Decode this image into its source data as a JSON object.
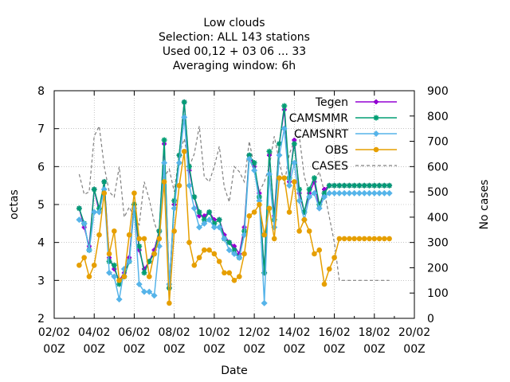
{
  "chart_data": {
    "type": "line",
    "title_lines": [
      "Low clouds",
      "Selection: ALL    143 stations",
      "Used  00,12  + 03 06 ... 33",
      "Averaging window:  6h"
    ],
    "xlabel": "Date",
    "ylabel": "octas",
    "y2label": "No cases",
    "xlim": [
      0,
      18
    ],
    "ylim": [
      2,
      8
    ],
    "y2lim": [
      0,
      900
    ],
    "x_ticks": [
      {
        "x": 0,
        "line1": "02/02",
        "line2": "00Z"
      },
      {
        "x": 2,
        "line1": "04/02",
        "line2": "00Z"
      },
      {
        "x": 4,
        "line1": "06/02",
        "line2": "00Z"
      },
      {
        "x": 6,
        "line1": "08/02",
        "line2": "00Z"
      },
      {
        "x": 8,
        "line1": "10/02",
        "line2": "00Z"
      },
      {
        "x": 10,
        "line1": "12/02",
        "line2": "00Z"
      },
      {
        "x": 12,
        "line1": "14/02",
        "line2": "00Z"
      },
      {
        "x": 14,
        "line1": "16/02",
        "line2": "00Z"
      },
      {
        "x": 16,
        "line1": "18/02",
        "line2": "00Z"
      },
      {
        "x": 18,
        "line1": "20/02",
        "line2": "00Z"
      }
    ],
    "y_ticks": [
      2,
      3,
      4,
      5,
      6,
      7,
      8
    ],
    "y2_ticks": [
      0,
      100,
      200,
      300,
      400,
      500,
      600,
      700,
      800,
      900
    ],
    "legend_position": "top-right",
    "x": [
      1.25,
      1.5,
      1.75,
      2.0,
      2.25,
      2.5,
      2.75,
      3.0,
      3.25,
      3.5,
      3.75,
      4.0,
      4.25,
      4.5,
      4.75,
      5.0,
      5.25,
      5.5,
      5.75,
      6.0,
      6.25,
      6.5,
      6.75,
      7.0,
      7.25,
      7.5,
      7.75,
      8.0,
      8.25,
      8.5,
      8.75,
      9.0,
      9.25,
      9.5,
      9.75,
      10.0,
      10.25,
      10.5,
      10.75,
      11.0,
      11.25,
      11.5,
      11.75,
      12.0,
      12.25,
      12.5,
      12.75,
      13.0,
      13.25,
      13.5,
      13.75,
      14.0,
      14.25,
      14.5,
      14.75,
      15.0,
      15.25,
      15.5,
      15.75,
      16.0,
      16.25,
      16.5,
      16.75
    ],
    "series": [
      {
        "name": "Tegen",
        "color": "#9400d3",
        "marker": "plus",
        "axis": "y1",
        "values": [
          4.9,
          4.4,
          3.9,
          5.4,
          4.8,
          5.6,
          3.6,
          3.3,
          3.0,
          3.2,
          3.6,
          5.0,
          3.8,
          3.3,
          3.5,
          3.8,
          4.3,
          6.6,
          2.8,
          5.0,
          6.3,
          7.7,
          5.9,
          5.2,
          4.7,
          4.7,
          4.8,
          4.6,
          4.6,
          4.2,
          4.0,
          3.9,
          3.7,
          4.4,
          6.3,
          6.0,
          5.3,
          3.2,
          6.3,
          4.7,
          6.6,
          7.5,
          5.6,
          6.7,
          5.3,
          4.8,
          5.3,
          5.6,
          4.9,
          5.4,
          5.5,
          5.5,
          5.5,
          5.5,
          5.5,
          5.5,
          5.5,
          5.5,
          5.5,
          5.5,
          5.5,
          5.5,
          5.5
        ]
      },
      {
        "name": "CAMSMMR",
        "color": "#009e73",
        "marker": "star",
        "axis": "y1",
        "values": [
          4.9,
          4.5,
          3.8,
          5.4,
          4.9,
          5.6,
          3.5,
          3.4,
          2.9,
          3.1,
          3.5,
          5.0,
          3.9,
          3.2,
          3.5,
          3.7,
          4.3,
          6.7,
          2.8,
          5.1,
          6.3,
          7.7,
          6.0,
          5.2,
          4.8,
          4.6,
          4.8,
          4.5,
          4.6,
          4.1,
          4.0,
          3.8,
          3.6,
          4.3,
          6.3,
          6.1,
          5.2,
          3.2,
          6.4,
          4.6,
          6.6,
          7.6,
          5.7,
          6.6,
          5.4,
          4.8,
          5.4,
          5.7,
          5.0,
          5.3,
          5.5,
          5.5,
          5.5,
          5.5,
          5.5,
          5.5,
          5.5,
          5.5,
          5.5,
          5.5,
          5.5,
          5.5,
          5.5
        ]
      },
      {
        "name": "CAMSNRT",
        "color": "#56b4e9",
        "marker": "diamond",
        "axis": "y1",
        "values": [
          4.6,
          4.5,
          3.8,
          4.8,
          4.8,
          5.4,
          3.2,
          3.1,
          2.5,
          3.3,
          3.5,
          4.9,
          2.9,
          2.7,
          2.7,
          2.6,
          3.9,
          6.1,
          2.9,
          4.9,
          6.1,
          7.3,
          5.5,
          4.9,
          4.4,
          4.5,
          4.6,
          4.4,
          4.4,
          4.1,
          3.8,
          3.7,
          3.6,
          4.2,
          6.2,
          5.9,
          5.1,
          2.4,
          5.8,
          4.4,
          6.3,
          7.0,
          5.5,
          6.1,
          5.1,
          4.6,
          5.2,
          5.3,
          4.9,
          5.2,
          5.3,
          5.3,
          5.3,
          5.3,
          5.3,
          5.3,
          5.3,
          5.3,
          5.3,
          5.3,
          5.3,
          5.3,
          5.3
        ]
      },
      {
        "name": "OBS",
        "color": "#e69f00",
        "marker": "circle",
        "axis": "y1",
        "values": [
          3.4,
          3.6,
          3.1,
          3.4,
          4.2,
          5.3,
          3.7,
          4.3,
          3.0,
          3.1,
          4.2,
          5.3,
          4.1,
          4.1,
          3.1,
          3.7,
          4.1,
          5.6,
          2.4,
          4.3,
          5.5,
          6.4,
          4.0,
          3.4,
          3.6,
          3.8,
          3.8,
          3.7,
          3.5,
          3.2,
          3.2,
          3.0,
          3.1,
          3.7,
          4.7,
          4.8,
          5.0,
          4.2,
          4.9,
          4.1,
          5.7,
          5.7,
          4.8,
          5.6,
          4.3,
          4.6,
          4.3,
          3.7,
          3.8,
          2.9,
          3.3,
          3.6,
          4.1,
          4.1,
          4.1,
          4.1,
          4.1,
          4.1,
          4.1,
          4.1,
          4.1,
          4.1,
          4.1
        ]
      },
      {
        "name": "CASES",
        "color": "#808080",
        "marker": "none",
        "dash": true,
        "axis": "y2",
        "values": [
          570,
          490,
          500,
          720,
          760,
          600,
          500,
          480,
          600,
          400,
          440,
          400,
          370,
          540,
          470,
          380,
          320,
          560,
          590,
          500,
          650,
          710,
          600,
          650,
          760,
          560,
          540,
          600,
          680,
          520,
          460,
          600,
          580,
          540,
          700,
          600,
          500,
          540,
          600,
          720,
          620,
          530,
          650,
          700,
          720,
          560,
          500,
          540,
          580,
          500,
          400,
          300,
          150,
          150,
          150,
          150,
          150,
          150,
          150,
          150,
          150,
          150,
          150
        ]
      }
    ]
  }
}
